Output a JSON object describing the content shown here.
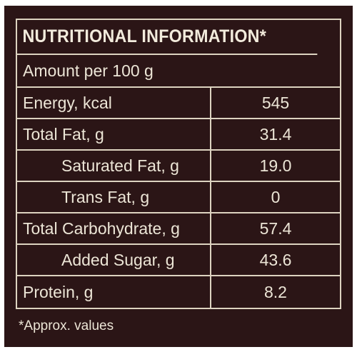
{
  "label": {
    "title": "NUTRITIONAL INFORMATION*",
    "serving": "Amount per 100 g",
    "rows": [
      {
        "nutrient": "Energy, kcal",
        "value": "545"
      },
      {
        "nutrient": "Total Fat, g",
        "value": "31.4"
      },
      {
        "nutrient": "Saturated Fat, g",
        "value": "19.0"
      },
      {
        "nutrient": "Trans Fat, g",
        "value": "0"
      },
      {
        "nutrient": "Total Carbohydrate, g",
        "value": "57.4"
      },
      {
        "nutrient": "Added Sugar, g",
        "value": "43.6"
      },
      {
        "nutrient": "Protein, g",
        "value": "8.2"
      }
    ],
    "footnote": "*Approx. values"
  },
  "colors": {
    "background": "#2b1516",
    "text": "#ece5d6",
    "rule": "#ddd3c0"
  }
}
